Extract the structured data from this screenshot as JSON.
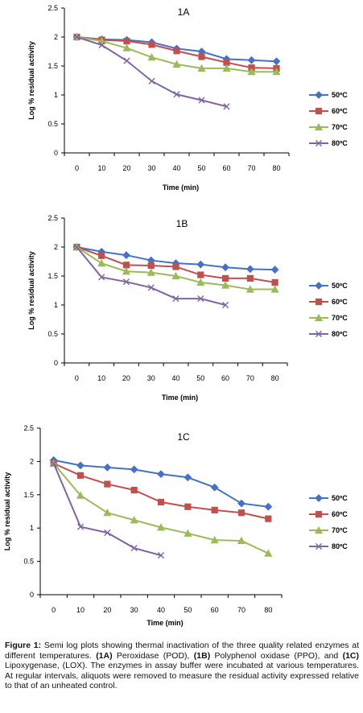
{
  "chart_data": [
    {
      "type": "line",
      "panel": "1A",
      "title": "1A",
      "xlabel": "Time (min)",
      "ylabel": "Log % residual activity",
      "x_ticks": [
        "0",
        "10",
        "20",
        "30",
        "40",
        "50",
        "60",
        "70",
        "80"
      ],
      "y_ticks": [
        "0",
        "0.5",
        "1",
        "1.5",
        "2",
        "2.5"
      ],
      "ylim": [
        0,
        2.5
      ],
      "legend_position": "right",
      "series": [
        {
          "name": "50ºC",
          "color": "#4472C4",
          "marker": "diamond",
          "x": [
            0,
            10,
            20,
            30,
            40,
            50,
            60,
            70,
            80
          ],
          "values": [
            2.0,
            1.96,
            1.95,
            1.91,
            1.8,
            1.75,
            1.62,
            1.6,
            1.58
          ]
        },
        {
          "name": "60ºC",
          "color": "#C0504D",
          "marker": "square",
          "x": [
            0,
            10,
            20,
            30,
            40,
            50,
            60,
            70,
            80
          ],
          "values": [
            2.0,
            1.95,
            1.93,
            1.87,
            1.76,
            1.66,
            1.56,
            1.47,
            1.46
          ]
        },
        {
          "name": "70ºC",
          "color": "#9BBB59",
          "marker": "triangle",
          "x": [
            0,
            10,
            20,
            30,
            40,
            50,
            60,
            70,
            80
          ],
          "values": [
            2.0,
            1.93,
            1.81,
            1.65,
            1.53,
            1.46,
            1.46,
            1.4,
            1.4
          ]
        },
        {
          "name": "80ºC",
          "color": "#8064A2",
          "marker": "x",
          "x": [
            0,
            10,
            20,
            30,
            40,
            50,
            60
          ],
          "values": [
            2.0,
            1.86,
            1.59,
            1.24,
            1.01,
            0.91,
            0.8
          ]
        }
      ]
    },
    {
      "type": "line",
      "panel": "1B",
      "title": "1B",
      "xlabel": "Time (min)",
      "ylabel": "Log % residual activity",
      "x_ticks": [
        "0",
        "10",
        "20",
        "30",
        "40",
        "50",
        "60",
        "70",
        "80"
      ],
      "y_ticks": [
        "0",
        "0.5",
        "1",
        "1.5",
        "2",
        "2.5"
      ],
      "ylim": [
        0,
        2.5
      ],
      "legend_position": "right",
      "series": [
        {
          "name": "50ºC",
          "color": "#4472C4",
          "marker": "diamond",
          "x": [
            0,
            10,
            20,
            30,
            40,
            50,
            60,
            70,
            80
          ],
          "values": [
            2.0,
            1.92,
            1.86,
            1.77,
            1.72,
            1.7,
            1.65,
            1.62,
            1.61
          ]
        },
        {
          "name": "60ºC",
          "color": "#C0504D",
          "marker": "square",
          "x": [
            0,
            10,
            20,
            30,
            40,
            50,
            60,
            70,
            80
          ],
          "values": [
            2.0,
            1.85,
            1.69,
            1.68,
            1.66,
            1.52,
            1.46,
            1.46,
            1.39
          ]
        },
        {
          "name": "70ºC",
          "color": "#9BBB59",
          "marker": "triangle",
          "x": [
            0,
            10,
            20,
            30,
            40,
            50,
            60,
            70,
            80
          ],
          "values": [
            2.0,
            1.72,
            1.58,
            1.56,
            1.5,
            1.39,
            1.34,
            1.27,
            1.27
          ]
        },
        {
          "name": "80ºC",
          "color": "#8064A2",
          "marker": "x",
          "x": [
            0,
            10,
            20,
            30,
            40,
            50,
            60
          ],
          "values": [
            2.0,
            1.48,
            1.4,
            1.3,
            1.11,
            1.11,
            1.0
          ]
        }
      ]
    },
    {
      "type": "line",
      "panel": "1C",
      "title": "1C",
      "xlabel": "Time (min)",
      "ylabel": "Log % residual activity",
      "x_ticks": [
        "0",
        "10",
        "20",
        "30",
        "40",
        "50",
        "60",
        "70",
        "80"
      ],
      "y_ticks": [
        "0",
        "0.5",
        "1",
        "1.5",
        "2",
        "2.5"
      ],
      "ylim": [
        0,
        2.5
      ],
      "legend_position": "right",
      "series": [
        {
          "name": "50ºC",
          "color": "#4472C4",
          "marker": "diamond",
          "x": [
            0,
            10,
            20,
            30,
            40,
            50,
            60,
            70,
            80
          ],
          "values": [
            2.02,
            1.94,
            1.91,
            1.88,
            1.81,
            1.76,
            1.61,
            1.37,
            1.32
          ]
        },
        {
          "name": "60ºC",
          "color": "#C0504D",
          "marker": "square",
          "x": [
            0,
            10,
            20,
            30,
            40,
            50,
            60,
            70,
            80
          ],
          "values": [
            1.97,
            1.79,
            1.66,
            1.57,
            1.39,
            1.32,
            1.27,
            1.23,
            1.14
          ]
        },
        {
          "name": "70ºC",
          "color": "#9BBB59",
          "marker": "triangle",
          "x": [
            0,
            10,
            20,
            30,
            40,
            50,
            60,
            70,
            80
          ],
          "values": [
            1.97,
            1.49,
            1.23,
            1.12,
            1.01,
            0.92,
            0.82,
            0.81,
            0.62
          ]
        },
        {
          "name": "80ºC",
          "color": "#8064A2",
          "marker": "x",
          "x": [
            0,
            10,
            20,
            30,
            40
          ],
          "values": [
            1.97,
            1.02,
            0.93,
            0.7,
            0.59
          ]
        }
      ]
    }
  ],
  "caption": {
    "figure_label": "Figure 1:",
    "text_1": " Semi log plots showing thermal inactivation of the three quality related enzymes at different temperatures. ",
    "label_a": "(1A)",
    "text_2": " Peroxidase (POD), ",
    "label_b": "(1B)",
    "text_3": " Polyphenol oxidase (PPO), and ",
    "label_c": "(1C)",
    "text_4": " Lipoxygenase, (LOX). The enzymes in assay buffer were incubated at various temperatures. At regular intervals, aliquots were removed to measure the residual activity expressed relative to that of an unheated control."
  }
}
